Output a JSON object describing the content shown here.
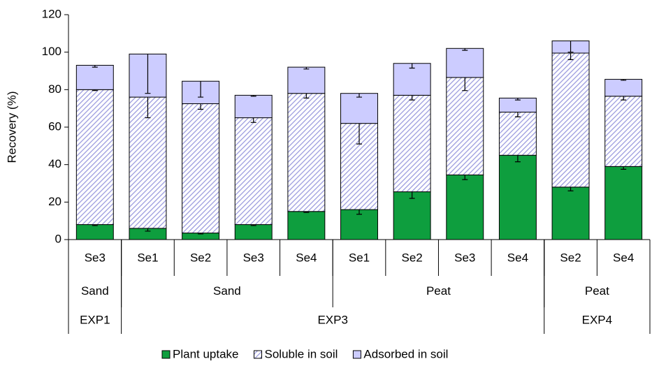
{
  "chart_data": {
    "type": "stacked_bar",
    "ylabel": "Recovery (%)",
    "ylim": [
      0,
      120
    ],
    "yticks": [
      0,
      20,
      40,
      60,
      80,
      100,
      120
    ],
    "categories": [
      "Se3",
      "Se1",
      "Se2",
      "Se3",
      "Se4",
      "Se1",
      "Se2",
      "Se3",
      "Se4",
      "Se2",
      "Se4"
    ],
    "categories2": [
      "Sand",
      "Sand",
      null,
      null,
      null,
      "Peat",
      null,
      null,
      null,
      "Peat",
      null
    ],
    "categories3": [
      "EXP1",
      "EXP3",
      null,
      null,
      null,
      null,
      null,
      null,
      null,
      "EXP4",
      null
    ],
    "legend": "bottom",
    "series": [
      {
        "name": "Plant uptake",
        "color": "#0e9e3e",
        "pattern": "solid",
        "values": [
          8,
          6,
          3.5,
          8,
          15,
          16,
          25.5,
          34.5,
          45,
          28,
          39
        ],
        "errors": [
          0.5,
          1.5,
          0.5,
          0.5,
          0.5,
          2.5,
          3.5,
          2.5,
          3.5,
          2,
          1.5
        ]
      },
      {
        "name": "Soluble in soil",
        "color": "#9999dd",
        "pattern": "hatch",
        "values": [
          72,
          70,
          69,
          57,
          63,
          46,
          51.5,
          52,
          23,
          71.5,
          37.5
        ],
        "errors": [
          0.5,
          11,
          3,
          2.5,
          2.5,
          11,
          2.5,
          7,
          2.5,
          3.5,
          2
        ]
      },
      {
        "name": "Adsorbed in soil",
        "color": "#ccccff",
        "pattern": "solid",
        "values": [
          13,
          23,
          12,
          12,
          14,
          16,
          17,
          15.5,
          7.5,
          6.5,
          9
        ],
        "errors": [
          1,
          21,
          8.5,
          0.5,
          1,
          2,
          2.5,
          1,
          1,
          6,
          0.5
        ]
      }
    ]
  }
}
